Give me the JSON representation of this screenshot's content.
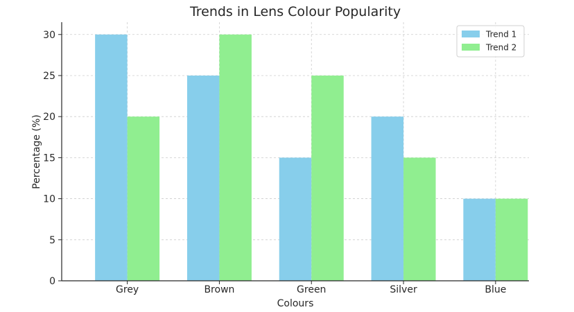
{
  "chart_data": {
    "type": "bar",
    "title": "Trends in Lens Colour Popularity",
    "xlabel": "Colours",
    "ylabel": "Percentage (%)",
    "categories": [
      "Grey",
      "Brown",
      "Green",
      "Silver",
      "Blue"
    ],
    "series": [
      {
        "name": "Trend 1",
        "values": [
          30,
          25,
          15,
          20,
          10
        ],
        "color": "#87ceeb"
      },
      {
        "name": "Trend 2",
        "values": [
          20,
          30,
          25,
          15,
          10
        ],
        "color": "#90ee90"
      }
    ],
    "ylim": [
      0,
      31.5
    ],
    "yticks": [
      0,
      5,
      10,
      15,
      20,
      25,
      30
    ],
    "grid": true,
    "legend_position": "top-right"
  }
}
